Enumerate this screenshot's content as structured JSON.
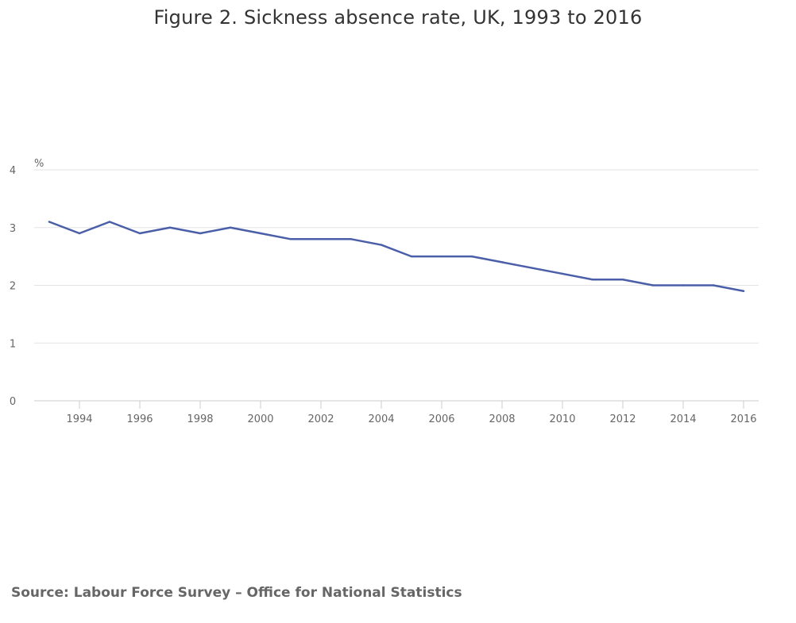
{
  "chart_data": {
    "type": "line",
    "title": "Figure 2. Sickness absence rate, UK, 1993 to 2016",
    "y_unit_label": "%",
    "xlabel": "",
    "ylabel": "",
    "x": [
      1993,
      1994,
      1995,
      1996,
      1997,
      1998,
      1999,
      2000,
      2001,
      2002,
      2003,
      2004,
      2005,
      2006,
      2007,
      2008,
      2009,
      2010,
      2011,
      2012,
      2013,
      2014,
      2015,
      2016
    ],
    "series": [
      {
        "values": [
          3.1,
          2.9,
          3.1,
          2.9,
          3.0,
          2.9,
          3.0,
          2.9,
          2.8,
          2.8,
          2.8,
          2.7,
          2.5,
          2.5,
          2.5,
          2.4,
          2.3,
          2.2,
          2.1,
          2.1,
          2.0,
          2.0,
          2.0,
          1.9
        ],
        "color": "#4a5fa8"
      }
    ],
    "x_ticks": [
      "1994",
      "1996",
      "1998",
      "2000",
      "2002",
      "2004",
      "2006",
      "2008",
      "2010",
      "2012",
      "2014",
      "2016"
    ],
    "y_ticks": [
      "0",
      "1",
      "2",
      "3",
      "4"
    ],
    "xlim": [
      1992.5,
      2016.5
    ],
    "ylim": [
      0,
      4
    ],
    "grid": true,
    "legend": "none"
  },
  "source": "Source: Labour Force Survey – Office for National Statistics",
  "colors": {
    "line": "#4a5fa8",
    "grid": "#e3e3e3",
    "text": "#666666"
  }
}
